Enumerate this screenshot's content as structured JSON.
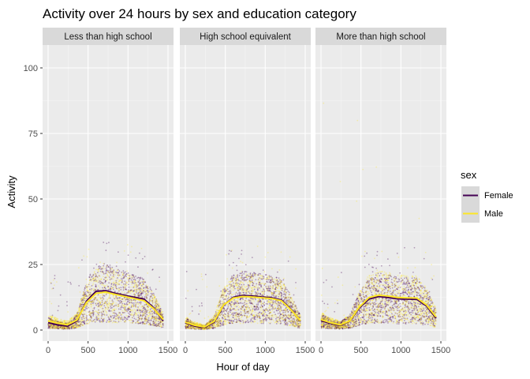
{
  "chart_data": {
    "type": "scatter",
    "title": "Activity over 24 hours by sex and education category",
    "xlabel": "Hour of day",
    "ylabel": "Activity",
    "xlim": [
      0,
      1440
    ],
    "ylim": [
      0,
      108
    ],
    "x_ticks": [
      0,
      500,
      1000,
      1500
    ],
    "x_tick_labels": [
      "0",
      "500",
      "1000",
      "1500"
    ],
    "y_ticks": [
      0,
      25,
      50,
      75,
      100
    ],
    "y_tick_labels": [
      "0",
      "25",
      "50",
      "75",
      "100"
    ],
    "grid": true,
    "legend": {
      "title": "sex",
      "position": "right",
      "entries": [
        {
          "label": "Female",
          "color": "#440154"
        },
        {
          "label": "Male",
          "color": "#fde725"
        }
      ]
    },
    "colors": {
      "panel_bg": "#ebebeb",
      "strip_bg": "#d9d9d9",
      "grid": "#ffffff"
    },
    "facets": [
      {
        "label": "Less than high school",
        "smooth": {
          "x": [
            0,
            120,
            240,
            360,
            480,
            600,
            720,
            840,
            960,
            1080,
            1200,
            1320,
            1440
          ],
          "Female": [
            2.8,
            2.0,
            1.5,
            3.5,
            11.0,
            14.8,
            15.0,
            14.0,
            13.2,
            12.5,
            11.8,
            8.5,
            3.5
          ],
          "Male": [
            3.5,
            2.6,
            2.0,
            3.8,
            10.5,
            14.0,
            14.5,
            13.6,
            12.8,
            12.0,
            11.2,
            8.2,
            4.0
          ]
        }
      },
      {
        "label": "High school equivalent",
        "smooth": {
          "x": [
            0,
            120,
            240,
            360,
            480,
            600,
            720,
            840,
            960,
            1080,
            1200,
            1320,
            1440
          ],
          "Female": [
            2.8,
            1.5,
            1.0,
            3.0,
            9.5,
            12.5,
            13.2,
            13.0,
            12.6,
            12.3,
            11.5,
            8.0,
            3.3
          ],
          "Male": [
            3.0,
            1.8,
            1.2,
            3.3,
            9.6,
            12.2,
            12.8,
            12.6,
            12.3,
            12.0,
            11.2,
            7.8,
            3.5
          ]
        }
      },
      {
        "label": "More than high school",
        "smooth": {
          "x": [
            0,
            120,
            240,
            360,
            480,
            600,
            720,
            840,
            960,
            1080,
            1200,
            1320,
            1440
          ],
          "Female": [
            3.6,
            2.5,
            1.8,
            3.4,
            8.5,
            11.8,
            12.8,
            12.4,
            11.9,
            11.8,
            11.7,
            9.2,
            4.5
          ],
          "Male": [
            4.0,
            2.8,
            2.0,
            3.5,
            8.8,
            12.4,
            13.3,
            13.0,
            12.4,
            12.3,
            12.2,
            9.6,
            5.0
          ]
        }
      }
    ]
  }
}
